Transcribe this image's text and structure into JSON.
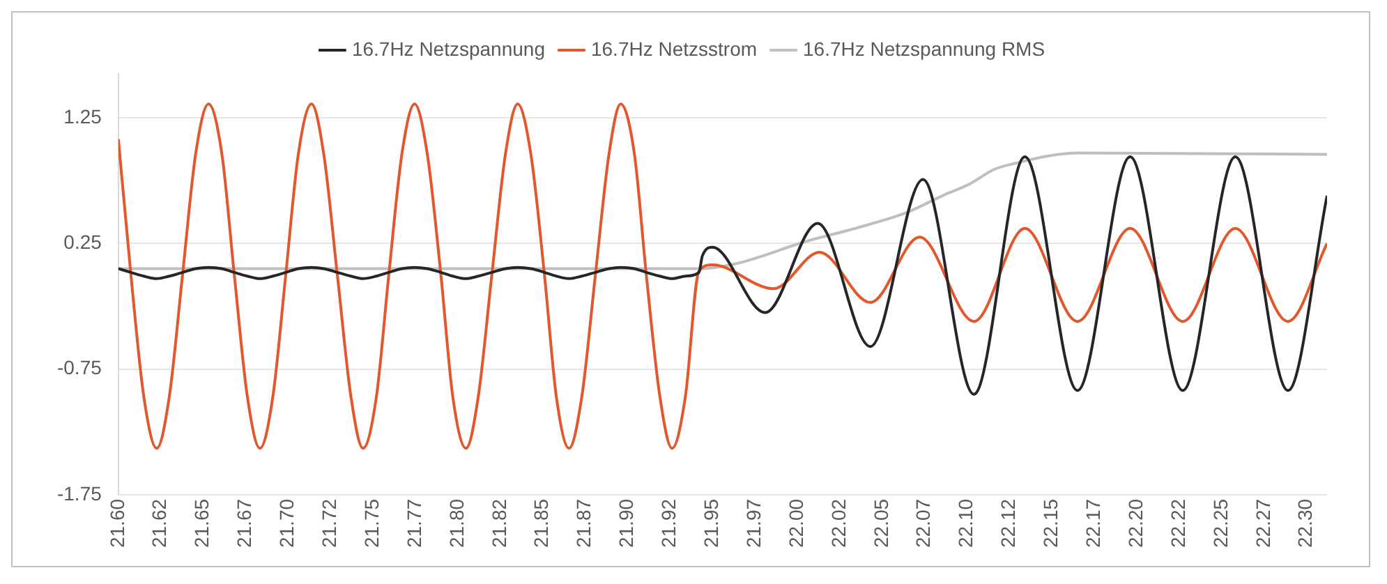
{
  "chart_data": {
    "type": "line",
    "marker": "none",
    "line_style": "solid",
    "grid": "y",
    "legend": "top",
    "xlim": [
      21.6,
      22.312
    ],
    "xticks": [
      {
        "value": 21.6,
        "label": "21.60"
      },
      {
        "value": 21.625,
        "label": "21.62"
      },
      {
        "value": 21.65,
        "label": "21.65"
      },
      {
        "value": 21.675,
        "label": "21.67"
      },
      {
        "value": 21.7,
        "label": "21.70"
      },
      {
        "value": 21.725,
        "label": "21.72"
      },
      {
        "value": 21.75,
        "label": "21.75"
      },
      {
        "value": 21.775,
        "label": "21.77"
      },
      {
        "value": 21.8,
        "label": "21.80"
      },
      {
        "value": 21.825,
        "label": "21.82"
      },
      {
        "value": 21.85,
        "label": "21.85"
      },
      {
        "value": 21.875,
        "label": "21.87"
      },
      {
        "value": 21.9,
        "label": "21.90"
      },
      {
        "value": 21.925,
        "label": "21.92"
      },
      {
        "value": 21.95,
        "label": "21.95"
      },
      {
        "value": 21.975,
        "label": "21.97"
      },
      {
        "value": 22,
        "label": "22.00"
      },
      {
        "value": 22.025,
        "label": "22.02"
      },
      {
        "value": 22.05,
        "label": "22.05"
      },
      {
        "value": 22.075,
        "label": "22.07"
      },
      {
        "value": 22.1,
        "label": "22.10"
      },
      {
        "value": 22.125,
        "label": "22.12"
      },
      {
        "value": 22.15,
        "label": "22.15"
      },
      {
        "value": 22.175,
        "label": "22.17"
      },
      {
        "value": 22.2,
        "label": "22.20"
      },
      {
        "value": 22.225,
        "label": "22.22"
      },
      {
        "value": 22.25,
        "label": "22.25"
      },
      {
        "value": 22.275,
        "label": "22.27"
      },
      {
        "value": 22.3,
        "label": "22.30"
      }
    ],
    "ylim": [
      -1.75,
      1.6
    ],
    "yticks": [
      -1.75,
      -0.75,
      0.25,
      1.25
    ],
    "series": [
      {
        "name": "16.7Hz Netzspannung",
        "color": "#262626",
        "x": [
          21.6,
          21.6074,
          21.615,
          21.6226,
          21.63,
          21.6378,
          21.6455,
          21.6531,
          21.661,
          21.6683,
          21.676,
          21.6834,
          21.691,
          21.6986,
          21.706,
          21.7138,
          21.721,
          21.729,
          21.737,
          21.7441,
          21.752,
          21.7593,
          21.767,
          21.7745,
          21.782,
          21.79,
          21.797,
          21.8048,
          21.812,
          21.82,
          21.828,
          21.8352,
          21.843,
          21.851,
          21.858,
          21.8655,
          21.873,
          21.881,
          21.889,
          21.8959,
          21.904,
          21.911,
          21.919,
          21.9262,
          21.934,
          21.942,
          21.944,
          21.95,
          21.981,
          22.012,
          22.043,
          22.074,
          22.104,
          22.134,
          22.165,
          22.196,
          22.227,
          22.258,
          22.289,
          22.312
        ],
        "values": [
          0.05,
          0.02,
          -0.01,
          -0.03,
          -0.01,
          0.02,
          0.05,
          0.06,
          0.05,
          0.02,
          -0.01,
          -0.03,
          -0.01,
          0.02,
          0.05,
          0.06,
          0.05,
          0.02,
          -0.01,
          -0.03,
          -0.01,
          0.02,
          0.05,
          0.06,
          0.05,
          0.02,
          -0.01,
          -0.03,
          -0.01,
          0.02,
          0.05,
          0.06,
          0.05,
          0.02,
          -0.01,
          -0.03,
          -0.01,
          0.02,
          0.05,
          0.06,
          0.05,
          0.02,
          -0.01,
          -0.03,
          -0.01,
          0.02,
          0.15,
          0.22,
          -0.3,
          0.41,
          -0.57,
          0.76,
          -0.95,
          0.94,
          -0.92,
          0.94,
          -0.92,
          0.94,
          -0.92,
          0.63
        ]
      },
      {
        "name": "16.7Hz Netzsstrom",
        "color": "#e0582c",
        "x": [
          21.6,
          21.6074,
          21.615,
          21.6226,
          21.63,
          21.6378,
          21.6455,
          21.6531,
          21.661,
          21.6683,
          21.676,
          21.6834,
          21.691,
          21.6986,
          21.706,
          21.7138,
          21.721,
          21.729,
          21.737,
          21.7441,
          21.752,
          21.7593,
          21.767,
          21.7745,
          21.782,
          21.79,
          21.797,
          21.8048,
          21.812,
          21.82,
          21.828,
          21.8352,
          21.843,
          21.851,
          21.858,
          21.8655,
          21.873,
          21.881,
          21.889,
          21.8959,
          21.904,
          21.911,
          21.919,
          21.9262,
          21.934,
          21.942,
          21.95,
          21.986,
          22.013,
          22.043,
          22.072,
          22.104,
          22.134,
          22.165,
          22.196,
          22.227,
          22.258,
          22.289,
          22.312
        ],
        "values": [
          1.08,
          0,
          -0.97,
          -1.38,
          -0.97,
          0,
          0.96,
          1.36,
          0.96,
          0,
          -0.97,
          -1.38,
          -0.97,
          0,
          0.96,
          1.36,
          0.96,
          0,
          -0.97,
          -1.38,
          -0.97,
          0,
          0.96,
          1.36,
          0.96,
          0,
          -0.97,
          -1.38,
          -0.97,
          0,
          0.96,
          1.36,
          0.96,
          0,
          -0.97,
          -1.38,
          -0.97,
          0,
          0.96,
          1.36,
          0.96,
          0,
          -0.97,
          -1.38,
          -0.97,
          0.03,
          0.08,
          -0.11,
          0.18,
          -0.22,
          0.3,
          -0.37,
          0.37,
          -0.37,
          0.37,
          -0.37,
          0.37,
          -0.37,
          0.25
        ]
      },
      {
        "name": "16.7Hz Netzspannung RMS",
        "color": "#bfbfbf",
        "x": [
          21.6,
          21.943,
          21.964,
          22.006,
          22.034,
          22.065,
          22.087,
          22.101,
          22.116,
          22.129,
          22.149,
          22.166,
          22.312
        ],
        "values": [
          0.05,
          0.05,
          0.09,
          0.27,
          0.37,
          0.5,
          0.64,
          0.72,
          0.84,
          0.89,
          0.95,
          0.97,
          0.96
        ]
      }
    ]
  }
}
